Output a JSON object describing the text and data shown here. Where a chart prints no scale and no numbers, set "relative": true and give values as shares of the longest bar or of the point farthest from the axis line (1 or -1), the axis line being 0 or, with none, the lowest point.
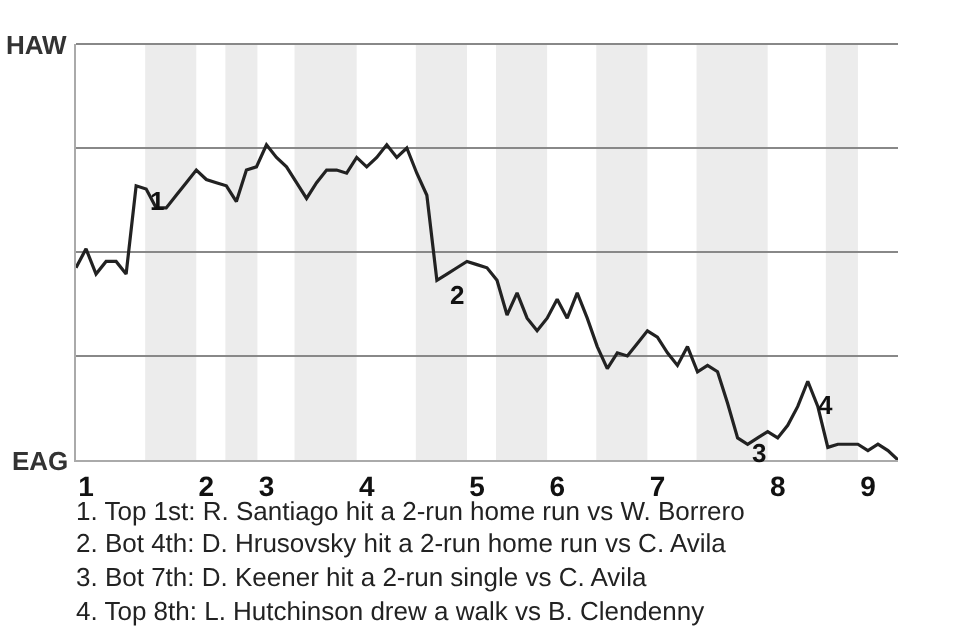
{
  "chart_data": {
    "type": "line",
    "marker": "none",
    "line_style": "solid",
    "relative": true,
    "ref_lines": [
      {
        "axis": "y",
        "value": 0.33,
        "color": "#888888"
      },
      {
        "axis": "y",
        "value": 0.66,
        "color": "#888888"
      },
      {
        "axis": "y",
        "value": 0.99,
        "color": "#888888"
      }
    ],
    "categories": [
      null,
      "1",
      null,
      null,
      null,
      null,
      null,
      null,
      null,
      null,
      null,
      null,
      null,
      "2",
      null,
      null,
      null,
      null,
      null,
      "3",
      null,
      null,
      null,
      null,
      null,
      null,
      null,
      null,
      null,
      "4",
      null,
      null,
      null,
      null,
      null,
      null,
      null,
      null,
      null,
      null,
      "5",
      null,
      null,
      null,
      null,
      null,
      null,
      null,
      "6",
      null,
      null,
      null,
      null,
      null,
      null,
      null,
      null,
      null,
      "7",
      null,
      null,
      null,
      null,
      null,
      null,
      null,
      null,
      null,
      null,
      null,
      "8",
      null,
      null,
      null,
      null,
      null,
      null,
      null,
      null,
      "9",
      null,
      null,
      null
    ],
    "series": [
      {
        "color": "#222222",
        "values": [
          0.61,
          0.67,
          0.59,
          0.63,
          0.63,
          0.59,
          0.87,
          0.86,
          0.8,
          0.8,
          0.84,
          0.88,
          0.92,
          0.89,
          0.88,
          0.87,
          0.82,
          0.92,
          0.93,
          1,
          0.96,
          0.93,
          0.88,
          0.83,
          0.88,
          0.92,
          0.92,
          0.91,
          0.96,
          0.93,
          0.96,
          1,
          0.96,
          0.99,
          0.91,
          0.84,
          0.57,
          0.59,
          0.61,
          0.63,
          0.62,
          0.61,
          0.57,
          0.46,
          0.53,
          0.45,
          0.41,
          0.45,
          0.51,
          0.45,
          0.53,
          0.45,
          0.36,
          0.29,
          0.34,
          0.33,
          0.37,
          0.41,
          0.39,
          0.34,
          0.3,
          0.36,
          0.28,
          0.3,
          0.28,
          0.18,
          0.07,
          0.05,
          0.07,
          0.09,
          0.07,
          0.11,
          0.17,
          0.25,
          0.17,
          0.04,
          0.05,
          0.05,
          0.05,
          0.03,
          0.05,
          0.03,
          0
        ]
      }
    ],
    "annotations": [
      {
        "text": "1",
        "y": 0.87
      },
      {
        "text": "2",
        "y": 0.57
      },
      {
        "text": "3",
        "y": 0.07
      },
      "4",
      "HAW",
      "EAG",
      "1. Top 1st: R. Santiago hit a 2-run home run vs W. Borrero",
      "2. Bot 4th: D. Hrusovsky hit a 2-run home run vs C. Avila",
      "3. Bot 7th: D. Keener hit a 2-run single vs C. Avila",
      "4. Top 8th: L. Hutchinson drew a walk vs B. Clendenny"
    ]
  }
}
